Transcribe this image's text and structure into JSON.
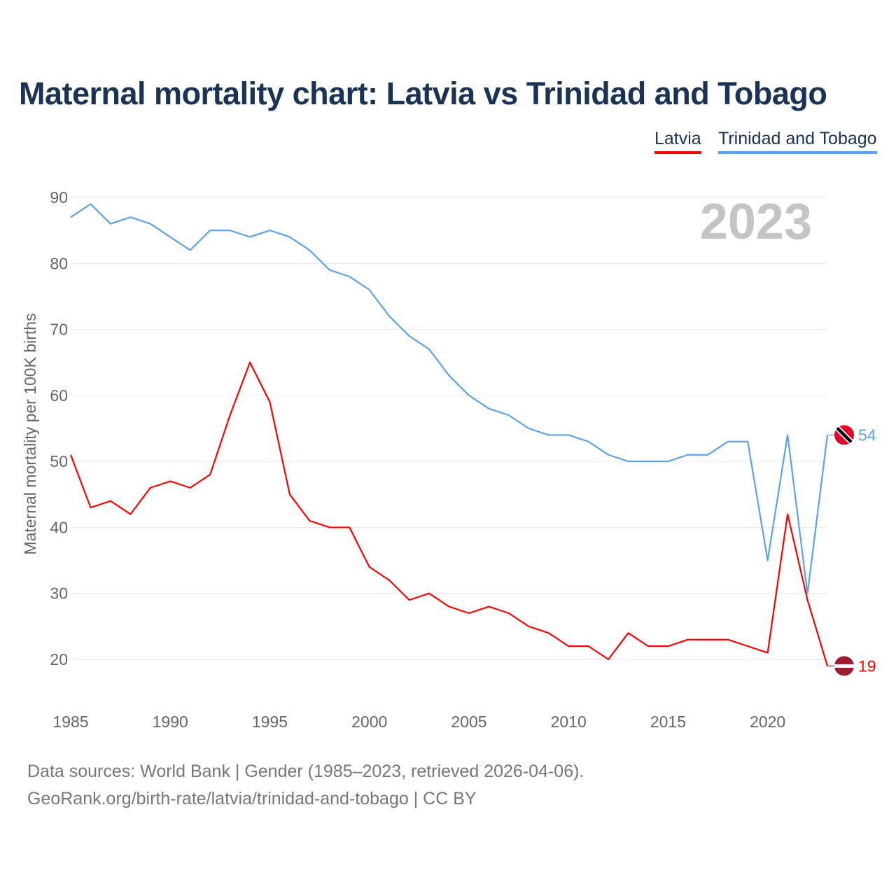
{
  "chart_data": {
    "type": "line",
    "title": "Maternal mortality chart: Latvia vs Trinidad and Tobago",
    "ylabel": "Maternal mortality per 100K births",
    "xlabel": "",
    "year_watermark": "2023",
    "ylim": [
      20,
      90
    ],
    "xlim": [
      1985,
      2023
    ],
    "yticks": [
      20,
      30,
      40,
      50,
      60,
      70,
      80,
      90
    ],
    "xticks": [
      1985,
      1990,
      1995,
      2000,
      2005,
      2010,
      2015,
      2020
    ],
    "grid": true,
    "legend_position": "top-right",
    "x": [
      1985,
      1986,
      1987,
      1988,
      1989,
      1990,
      1991,
      1992,
      1993,
      1994,
      1995,
      1996,
      1997,
      1998,
      1999,
      2000,
      2001,
      2002,
      2003,
      2004,
      2005,
      2006,
      2007,
      2008,
      2009,
      2010,
      2011,
      2012,
      2013,
      2014,
      2015,
      2016,
      2017,
      2018,
      2019,
      2020,
      2021,
      2022,
      2023
    ],
    "series": [
      {
        "name": "Latvia",
        "color": "#ff0000",
        "end_label": "19",
        "values": [
          51,
          43,
          44,
          42,
          46,
          47,
          46,
          48,
          57,
          65,
          59,
          45,
          41,
          40,
          40,
          34,
          32,
          29,
          30,
          28,
          27,
          28,
          27,
          25,
          24,
          22,
          22,
          20,
          24,
          22,
          22,
          23,
          23,
          23,
          22,
          21,
          42,
          29,
          19
        ]
      },
      {
        "name": "Trinidad and Tobago",
        "color": "#5ba3e8",
        "end_label": "54",
        "values": [
          87,
          89,
          86,
          87,
          86,
          84,
          82,
          85,
          85,
          84,
          85,
          84,
          82,
          79,
          78,
          76,
          72,
          69,
          67,
          63,
          60,
          58,
          57,
          55,
          54,
          54,
          53,
          51,
          50,
          50,
          50,
          51,
          51,
          53,
          53,
          35,
          54,
          30,
          54
        ]
      }
    ]
  },
  "footer": {
    "sources": "Data sources: World Bank | Gender (1985–2023, retrieved 2026-04-06).",
    "link": "GeoRank.org/birth-rate/latvia/trinidad-and-tobago | CC BY"
  }
}
